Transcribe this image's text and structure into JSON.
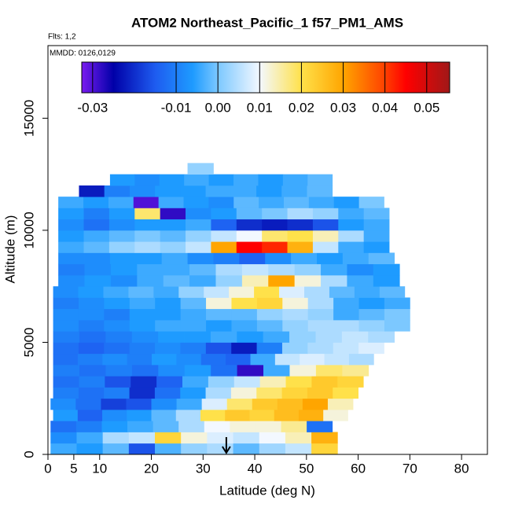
{
  "chart_data": {
    "type": "heatmap",
    "title": "ATOM2 Northeast_Pacific_1 f57_PM1_AMS",
    "flights": "Flts: 1,2",
    "dates": "MMDD: 0126,0129",
    "x_label": "Latitude (deg N)",
    "y_label": "Altitude (m)",
    "xlim": [
      0,
      85
    ],
    "ylim": [
      0,
      18240
    ],
    "xticks": [
      0,
      5,
      10,
      20,
      30,
      40,
      50,
      60,
      70,
      80
    ],
    "yticks": [
      0,
      5000,
      10000,
      15000
    ],
    "clim": [
      -0.0326,
      0.0555
    ],
    "cticks": [
      -0.03,
      -0.01,
      {
        "value": 0,
        "label": "0.00"
      },
      0.01,
      0.02,
      0.03,
      0.04,
      0.05
    ],
    "colorscale": [
      [
        -0.0326,
        "#7a1cf0"
      ],
      [
        -0.025,
        "#0000a8"
      ],
      [
        -0.015,
        "#1e5cf0"
      ],
      [
        -0.006,
        "#1e9bff"
      ],
      [
        0.0,
        "#7cc8ff"
      ],
      [
        0.01,
        "#f3f8ff"
      ],
      [
        0.02,
        "#ffe14a"
      ],
      [
        0.03,
        "#ffa500"
      ],
      [
        0.04,
        "#ff4000"
      ],
      [
        0.045,
        "#ff0000"
      ],
      [
        0.0555,
        "#a01818"
      ]
    ],
    "marker_x": 34.5,
    "rows": [
      {
        "alt": [
          0,
          500
        ],
        "lat": [
          0.5,
          56
        ],
        "values": [
          -0.004,
          -0.006,
          -0.002,
          -0.016,
          -0.003,
          0.002,
          0.004,
          -0.002,
          0.003,
          0.006,
          0.022
        ]
      },
      {
        "alt": [
          500,
          1000
        ],
        "lat": [
          0.5,
          56
        ],
        "values": [
          -0.008,
          -0.004,
          0.004,
          0.006,
          0.022,
          0.012,
          0.008,
          0.006,
          0.01,
          0.014,
          0.028
        ]
      },
      {
        "alt": [
          1000,
          1500
        ],
        "lat": [
          0.5,
          55
        ],
        "values": [
          -0.012,
          -0.01,
          -0.006,
          -0.004,
          -0.002,
          0.004,
          0.01,
          0.012,
          0.012,
          0.016,
          -0.012
        ]
      },
      {
        "alt": [
          1500,
          2000
        ],
        "lat": [
          1,
          58
        ],
        "values": [
          -0.006,
          -0.014,
          -0.008,
          -0.006,
          -0.002,
          0.004,
          0.02,
          0.024,
          0.022,
          0.026,
          0.028,
          0.012
        ]
      },
      {
        "alt": [
          2000,
          2500
        ],
        "lat": [
          0.5,
          59
        ],
        "values": [
          -0.008,
          -0.012,
          -0.018,
          -0.016,
          -0.008,
          -0.004,
          0.008,
          0.018,
          0.024,
          0.026,
          0.03,
          0.014
        ]
      },
      {
        "alt": [
          2500,
          3000
        ],
        "lat": [
          1,
          60
        ],
        "values": [
          -0.01,
          -0.012,
          -0.01,
          -0.02,
          -0.012,
          -0.006,
          0.004,
          0.012,
          0.018,
          0.022,
          0.024,
          0.02
        ]
      },
      {
        "alt": [
          3000,
          3500
        ],
        "lat": [
          1,
          61
        ],
        "values": [
          -0.012,
          -0.01,
          -0.016,
          -0.02,
          -0.014,
          -0.004,
          0.002,
          0.006,
          0.014,
          0.02,
          0.024,
          0.022
        ]
      },
      {
        "alt": [
          3500,
          4000
        ],
        "lat": [
          1,
          62
        ],
        "values": [
          -0.01,
          -0.012,
          -0.01,
          -0.012,
          -0.008,
          -0.006,
          -0.012,
          -0.028,
          -0.004,
          0.012,
          0.018,
          0.016
        ]
      },
      {
        "alt": [
          4000,
          4500
        ],
        "lat": [
          1,
          63
        ],
        "values": [
          -0.012,
          -0.01,
          -0.008,
          -0.01,
          -0.006,
          -0.008,
          -0.012,
          -0.014,
          -0.004,
          0.006,
          0.008,
          0.006,
          0.004
        ]
      },
      {
        "alt": [
          4500,
          5000
        ],
        "lat": [
          1,
          65
        ],
        "values": [
          -0.012,
          -0.014,
          -0.012,
          -0.01,
          -0.008,
          -0.01,
          -0.016,
          -0.022,
          -0.01,
          0.002,
          0.004,
          0.006,
          0.008
        ]
      },
      {
        "alt": [
          5000,
          5500
        ],
        "lat": [
          1,
          67
        ],
        "values": [
          -0.01,
          -0.012,
          -0.01,
          -0.008,
          -0.006,
          -0.006,
          -0.004,
          -0.006,
          -0.004,
          0.002,
          0.004,
          0.006,
          0.004
        ]
      },
      {
        "alt": [
          5500,
          6000
        ],
        "lat": [
          1,
          70
        ],
        "values": [
          -0.008,
          -0.01,
          -0.008,
          -0.006,
          -0.004,
          -0.004,
          -0.006,
          -0.004,
          -0.002,
          0.002,
          0.004,
          0.004,
          0.002,
          0.0
        ]
      },
      {
        "alt": [
          6000,
          6500
        ],
        "lat": [
          1,
          70
        ],
        "values": [
          -0.008,
          -0.008,
          -0.01,
          -0.006,
          -0.006,
          -0.004,
          -0.002,
          -0.002,
          0.002,
          0.004,
          0.002,
          -0.004,
          -0.002,
          0.0
        ]
      },
      {
        "alt": [
          6500,
          7000
        ],
        "lat": [
          1,
          70
        ],
        "values": [
          -0.01,
          -0.008,
          -0.006,
          -0.004,
          -0.006,
          -0.002,
          0.012,
          0.02,
          0.022,
          0.012,
          0.004,
          -0.004,
          -0.006,
          -0.004
        ]
      },
      {
        "alt": [
          7000,
          7500
        ],
        "lat": [
          1,
          69
        ],
        "values": [
          -0.008,
          -0.006,
          -0.004,
          -0.002,
          -0.004,
          0.002,
          0.006,
          0.012,
          0.02,
          0.008,
          0.004,
          -0.002,
          -0.004,
          -0.002
        ]
      },
      {
        "alt": [
          7500,
          8000
        ],
        "lat": [
          2,
          68
        ],
        "values": [
          -0.008,
          -0.006,
          -0.008,
          -0.004,
          -0.002,
          -0.004,
          0.002,
          0.014,
          0.03,
          0.012,
          0.004,
          -0.004,
          -0.006
        ]
      },
      {
        "alt": [
          8000,
          8500
        ],
        "lat": [
          2,
          68
        ],
        "values": [
          -0.01,
          -0.008,
          -0.006,
          -0.004,
          -0.004,
          -0.002,
          0.004,
          0.006,
          0.004,
          0.002,
          -0.004,
          -0.008,
          -0.006
        ]
      },
      {
        "alt": [
          8500,
          9000
        ],
        "lat": [
          2,
          67
        ],
        "values": [
          -0.008,
          -0.008,
          -0.006,
          -0.006,
          -0.004,
          -0.008,
          -0.01,
          -0.014,
          -0.008,
          -0.004,
          -0.006,
          -0.004,
          -0.002
        ]
      },
      {
        "alt": [
          9000,
          9500
        ],
        "lat": [
          2,
          66
        ],
        "values": [
          -0.004,
          -0.002,
          0.002,
          0.004,
          0.002,
          0.006,
          0.03,
          0.045,
          0.042,
          0.028,
          0.006,
          -0.004,
          -0.006
        ]
      },
      {
        "alt": [
          9500,
          10000
        ],
        "lat": [
          2,
          66
        ],
        "values": [
          -0.006,
          -0.004,
          -0.002,
          0.0,
          -0.002,
          0.002,
          0.006,
          0.01,
          0.018,
          0.02,
          0.014,
          0.004,
          -0.004
        ]
      },
      {
        "alt": [
          10000,
          10500
        ],
        "lat": [
          2,
          66
        ],
        "values": [
          -0.008,
          -0.012,
          -0.008,
          -0.006,
          -0.006,
          -0.004,
          -0.014,
          -0.02,
          -0.022,
          -0.02,
          -0.016,
          -0.006,
          -0.004
        ]
      },
      {
        "alt": [
          10500,
          11000
        ],
        "lat": [
          2,
          66
        ],
        "values": [
          -0.006,
          -0.01,
          -0.006,
          0.018,
          -0.028,
          -0.008,
          -0.006,
          -0.002,
          0.0,
          0.004,
          0.002,
          -0.004,
          -0.002
        ]
      },
      {
        "alt": [
          11000,
          11500
        ],
        "lat": [
          2,
          65
        ],
        "values": [
          -0.004,
          -0.006,
          -0.004,
          -0.03,
          -0.004,
          -0.006,
          -0.008,
          -0.002,
          -0.004,
          -0.002,
          -0.004,
          -0.006,
          0.0
        ]
      },
      {
        "alt": [
          11500,
          12000
        ],
        "lat": [
          6,
          55
        ],
        "values": [
          -0.022,
          -0.01,
          -0.008,
          -0.006,
          -0.006,
          -0.004,
          -0.004,
          -0.006,
          -0.004,
          -0.002
        ]
      },
      {
        "alt": [
          12000,
          12500
        ],
        "lat": [
          12,
          55
        ],
        "values": [
          -0.006,
          -0.008,
          -0.006,
          -0.004,
          -0.006,
          -0.004,
          -0.006,
          -0.004,
          -0.002
        ]
      },
      {
        "alt": [
          12500,
          13000
        ],
        "lat": [
          27,
          32
        ],
        "values": [
          0.002
        ]
      }
    ]
  }
}
